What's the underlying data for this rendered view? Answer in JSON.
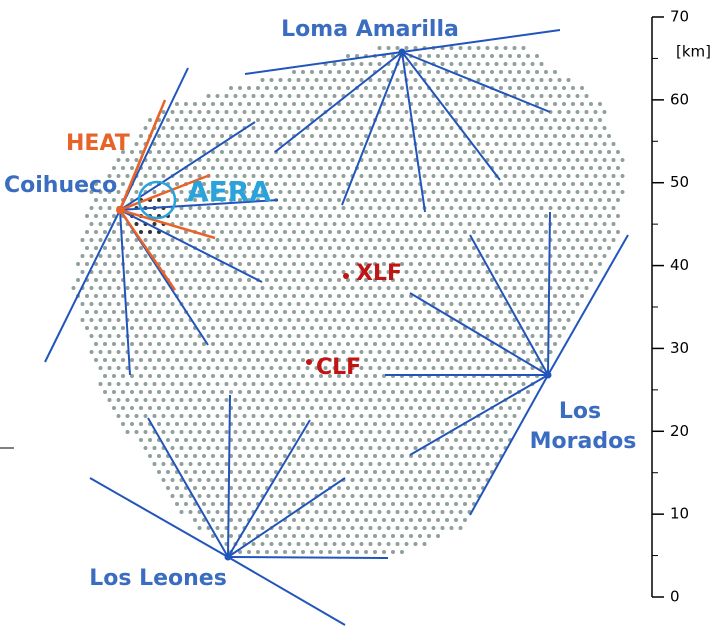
{
  "sites": [
    {
      "name": "Loma Amarilla"
    },
    {
      "name": "Coihueco"
    },
    {
      "name": "Los Morados"
    },
    {
      "name": "Los Leones"
    }
  ],
  "enhancements": [
    {
      "name": "HEAT"
    },
    {
      "name": "AERA"
    }
  ],
  "lasers": [
    {
      "name": "XLF"
    },
    {
      "name": "CLF"
    }
  ],
  "scale": {
    "unit": "[km]",
    "ticks": [
      0,
      10,
      20,
      30,
      40,
      50,
      60,
      70
    ]
  }
}
